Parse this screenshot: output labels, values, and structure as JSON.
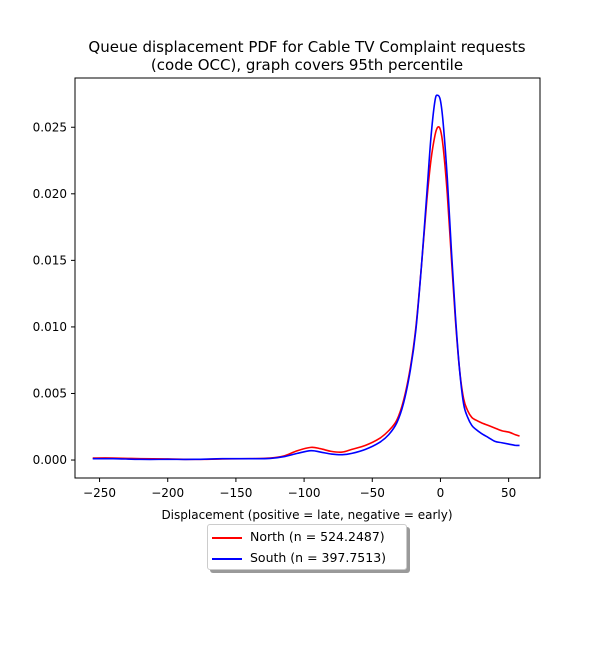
{
  "chart_data": {
    "type": "line",
    "title": "Queue displacement PDF for Cable TV Complaint  requests",
    "subtitle": "(code OCC), graph covers 95th percentile",
    "xlabel": "Displacement (positive = late, negative = early)",
    "ylabel": "",
    "xlim": [
      -268,
      73
    ],
    "ylim": [
      -0.00135,
      0.0287
    ],
    "xticks": [
      -250,
      -200,
      -150,
      -100,
      -50,
      0,
      50
    ],
    "xtick_labels": [
      "−250",
      "−200",
      "−150",
      "−100",
      "−50",
      "0",
      "50"
    ],
    "yticks": [
      0.0,
      0.005,
      0.01,
      0.015,
      0.02,
      0.025
    ],
    "ytick_labels": [
      "0.000",
      "0.005",
      "0.010",
      "0.015",
      "0.020",
      "0.025"
    ],
    "grid": false,
    "legend_position": "below",
    "series": [
      {
        "name": "North (n = 524.2487)",
        "color": "#ff0000",
        "x": [
          -255,
          -240,
          -220,
          -200,
          -180,
          -160,
          -140,
          -125,
          -115,
          -105,
          -95,
          -88,
          -80,
          -72,
          -65,
          -55,
          -45,
          -38,
          -32,
          -27,
          -22,
          -18,
          -14,
          -10,
          -7,
          -4,
          -2,
          0,
          2,
          5,
          8,
          11,
          14,
          17,
          20,
          23,
          26,
          30,
          35,
          40,
          45,
          50,
          55,
          58
        ],
        "y": [
          0.00015,
          0.00015,
          0.0001,
          8e-05,
          5e-05,
          8e-05,
          0.0001,
          0.00015,
          0.0003,
          0.0007,
          0.00095,
          0.00085,
          0.00065,
          0.0006,
          0.0008,
          0.0011,
          0.0016,
          0.0022,
          0.003,
          0.0045,
          0.007,
          0.01,
          0.0145,
          0.0195,
          0.0225,
          0.0244,
          0.025,
          0.0248,
          0.0235,
          0.02,
          0.0152,
          0.0105,
          0.0068,
          0.0046,
          0.0037,
          0.0032,
          0.003,
          0.0028,
          0.0026,
          0.0024,
          0.0022,
          0.0021,
          0.0019,
          0.0018
        ]
      },
      {
        "name": "South (n = 397.7513)",
        "color": "#0000ff",
        "x": [
          -255,
          -240,
          -220,
          -200,
          -180,
          -160,
          -140,
          -125,
          -115,
          -105,
          -95,
          -88,
          -80,
          -72,
          -65,
          -55,
          -45,
          -38,
          -32,
          -27,
          -22,
          -18,
          -14,
          -10,
          -7,
          -4,
          -2,
          0,
          2,
          5,
          8,
          11,
          14,
          17,
          20,
          23,
          26,
          30,
          35,
          40,
          45,
          50,
          55,
          58
        ],
        "y": [
          0.0001,
          0.0001,
          5e-05,
          5e-05,
          5e-05,
          0.0001,
          0.0001,
          0.00012,
          0.00025,
          0.0005,
          0.0007,
          0.0006,
          0.00045,
          0.0004,
          0.0005,
          0.0008,
          0.0013,
          0.0019,
          0.0028,
          0.0043,
          0.0068,
          0.0098,
          0.0145,
          0.02,
          0.0242,
          0.027,
          0.0274,
          0.027,
          0.0253,
          0.0212,
          0.0158,
          0.0108,
          0.0068,
          0.0042,
          0.0032,
          0.0026,
          0.0023,
          0.002,
          0.0017,
          0.0014,
          0.0013,
          0.0012,
          0.0011,
          0.0011
        ]
      }
    ]
  }
}
